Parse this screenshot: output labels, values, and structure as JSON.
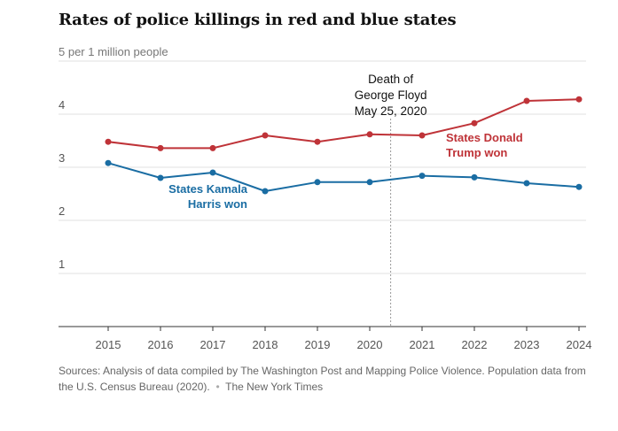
{
  "chart_data": {
    "type": "line",
    "title": "Rates of police killings in red and blue states",
    "ylabel": "per 1 million people",
    "ylim": [
      0,
      5
    ],
    "yticks": [
      1,
      2,
      3,
      4,
      5
    ],
    "x": [
      2015,
      2016,
      2017,
      2018,
      2019,
      2020,
      2021,
      2022,
      2023,
      2024
    ],
    "grid": true,
    "series": [
      {
        "name": "States Donald Trump won",
        "label_lines": [
          "States Donald",
          "Trump won"
        ],
        "color": "#bf3338",
        "values": [
          3.48,
          3.36,
          3.36,
          3.6,
          3.48,
          3.62,
          3.6,
          3.83,
          4.25,
          4.28
        ]
      },
      {
        "name": "States Kamala Harris won",
        "label_lines": [
          "States Kamala",
          "Harris won"
        ],
        "color": "#1a6da3",
        "values": [
          3.08,
          2.8,
          2.9,
          2.55,
          2.72,
          2.72,
          2.84,
          2.81,
          2.7,
          2.63
        ]
      }
    ],
    "annotations": [
      {
        "x": 2020.4,
        "lines": [
          "Death of",
          "George Floyd",
          "May 25, 2020"
        ]
      }
    ],
    "source": "Sources: Analysis of data compiled by The Washington Post and Mapping Police Violence. Population data from the U.S. Census Bureau (2020).",
    "credit": "The New York Times"
  }
}
